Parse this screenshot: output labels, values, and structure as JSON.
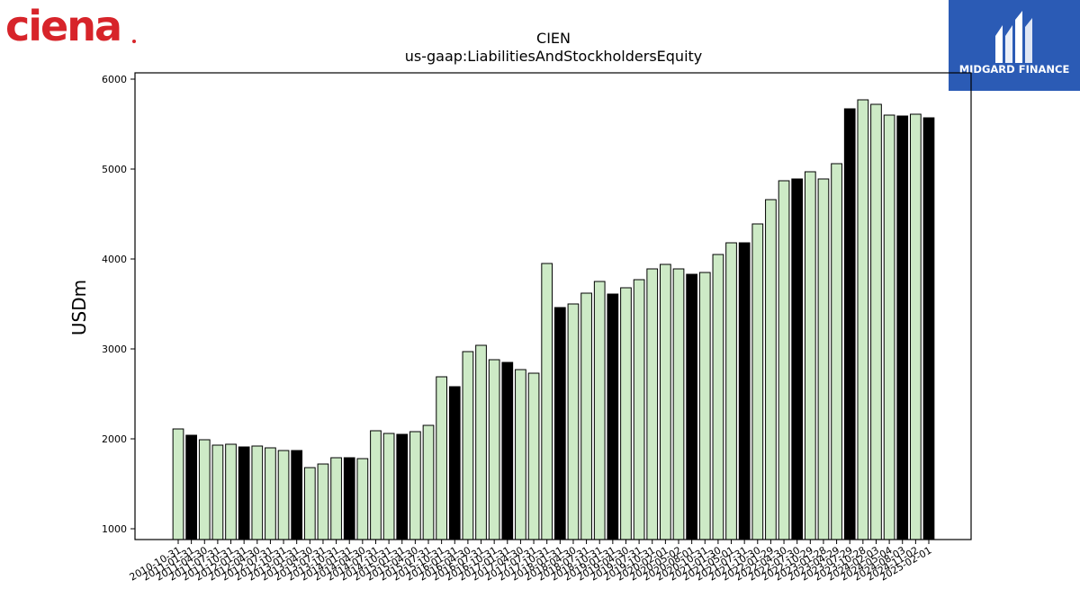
{
  "branding": {
    "left_logo_text": "ciena",
    "right_logo_text": "MIDGARD FINANCE",
    "right_logo_color": "#2b5bb5",
    "left_logo_color": "#d7242a"
  },
  "chart_data": {
    "type": "bar",
    "title": "CIEN",
    "subtitle": "us-gaap:LiabilitiesAndStockholdersEquity",
    "ylabel": "USDm",
    "xlabel": "",
    "ylim": [
      880,
      6070
    ],
    "yticks": [
      1000,
      2000,
      3000,
      4000,
      5000,
      6000
    ],
    "grid": false,
    "colors": {
      "quarter": "#cdeac6",
      "annual": "#000000",
      "edge": "#000000"
    },
    "categories": [
      "2010-10-31",
      "2011-01-31",
      "2011-04-30",
      "2011-07-31",
      "2011-10-31",
      "2012-01-31",
      "2012-04-30",
      "2012-07-31",
      "2012-10-31",
      "2013-01-31",
      "2013-04-30",
      "2013-07-31",
      "2013-10-31",
      "2014-01-31",
      "2014-04-30",
      "2014-07-31",
      "2014-10-31",
      "2015-01-31",
      "2015-04-30",
      "2015-07-31",
      "2015-10-31",
      "2016-01-31",
      "2016-04-30",
      "2016-07-31",
      "2016-10-31",
      "2017-01-31",
      "2017-04-30",
      "2017-07-31",
      "2017-10-31",
      "2018-01-31",
      "2018-04-30",
      "2018-07-31",
      "2018-10-31",
      "2019-01-31",
      "2019-04-30",
      "2019-07-31",
      "2019-10-31",
      "2020-02-01",
      "2020-05-02",
      "2020-08-01",
      "2020-10-31",
      "2021-01-30",
      "2021-05-01",
      "2021-07-31",
      "2021-10-30",
      "2022-01-29",
      "2022-04-30",
      "2022-07-30",
      "2022-10-29",
      "2023-01-28",
      "2023-04-29",
      "2023-07-29",
      "2023-10-28",
      "2024-02-03",
      "2024-05-04",
      "2024-08-03",
      "2024-11-02",
      "2025-02-01"
    ],
    "values": [
      2110,
      2040,
      1990,
      1930,
      1940,
      1910,
      1920,
      1900,
      1870,
      1870,
      1680,
      1720,
      1790,
      1790,
      1780,
      2090,
      2060,
      2050,
      2080,
      2150,
      2690,
      2580,
      2970,
      3040,
      2880,
      2850,
      2770,
      2730,
      3950,
      3460,
      3500,
      3620,
      3750,
      3610,
      3680,
      3770,
      3890,
      3940,
      3890,
      3830,
      3850,
      4050,
      4180,
      4180,
      4390,
      4660,
      4870,
      4890,
      4970,
      4890,
      5060,
      5670,
      5770,
      5720,
      5600,
      5590,
      5610,
      5570
    ],
    "annual": [
      false,
      true,
      false,
      false,
      false,
      true,
      false,
      false,
      false,
      true,
      false,
      false,
      false,
      true,
      false,
      false,
      false,
      true,
      false,
      false,
      false,
      true,
      false,
      false,
      false,
      true,
      false,
      false,
      false,
      true,
      false,
      false,
      false,
      true,
      false,
      false,
      false,
      false,
      false,
      true,
      false,
      false,
      false,
      true,
      false,
      false,
      false,
      true,
      false,
      false,
      false,
      true,
      false,
      false,
      false,
      true,
      false,
      true
    ]
  }
}
